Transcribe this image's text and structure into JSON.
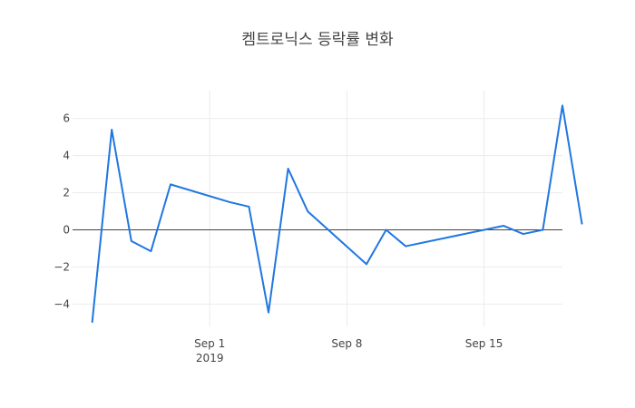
{
  "chart_data": {
    "type": "line",
    "title": "켐트로닉스 등락률 변화",
    "xlabel": "",
    "ylabel": "",
    "x_range": [
      "2019-08-25",
      "2019-09-19"
    ],
    "ylim": [
      -5.2,
      7.5
    ],
    "x_ticks": [
      {
        "date": "2019-09-01",
        "label": "Sep 1",
        "sublabel": "2019"
      },
      {
        "date": "2019-09-08",
        "label": "Sep 8",
        "sublabel": ""
      },
      {
        "date": "2019-09-15",
        "label": "Sep 15",
        "sublabel": ""
      }
    ],
    "y_ticks": [
      {
        "value": -4,
        "label": "−4"
      },
      {
        "value": -2,
        "label": "−2"
      },
      {
        "value": 0,
        "label": "0"
      },
      {
        "value": 2,
        "label": "2"
      },
      {
        "value": 4,
        "label": "4"
      },
      {
        "value": 6,
        "label": "6"
      }
    ],
    "grid": true,
    "zero_line": true,
    "series": [
      {
        "color": "#1f77e0",
        "x": [
          "2019-08-26",
          "2019-08-27",
          "2019-08-28",
          "2019-08-29",
          "2019-08-30",
          "2019-09-02",
          "2019-09-03",
          "2019-09-04",
          "2019-09-05",
          "2019-09-06",
          "2019-09-09",
          "2019-09-10",
          "2019-09-11",
          "2019-09-16",
          "2019-09-17",
          "2019-09-18",
          "2019-09-19",
          "2019-09-20"
        ],
        "y": [
          -5.0,
          5.4,
          -0.6,
          -1.15,
          2.45,
          1.5,
          1.25,
          -4.45,
          3.3,
          1.0,
          -1.85,
          0.0,
          -0.88,
          0.22,
          -0.22,
          0.0,
          6.7,
          0.3
        ]
      }
    ]
  }
}
